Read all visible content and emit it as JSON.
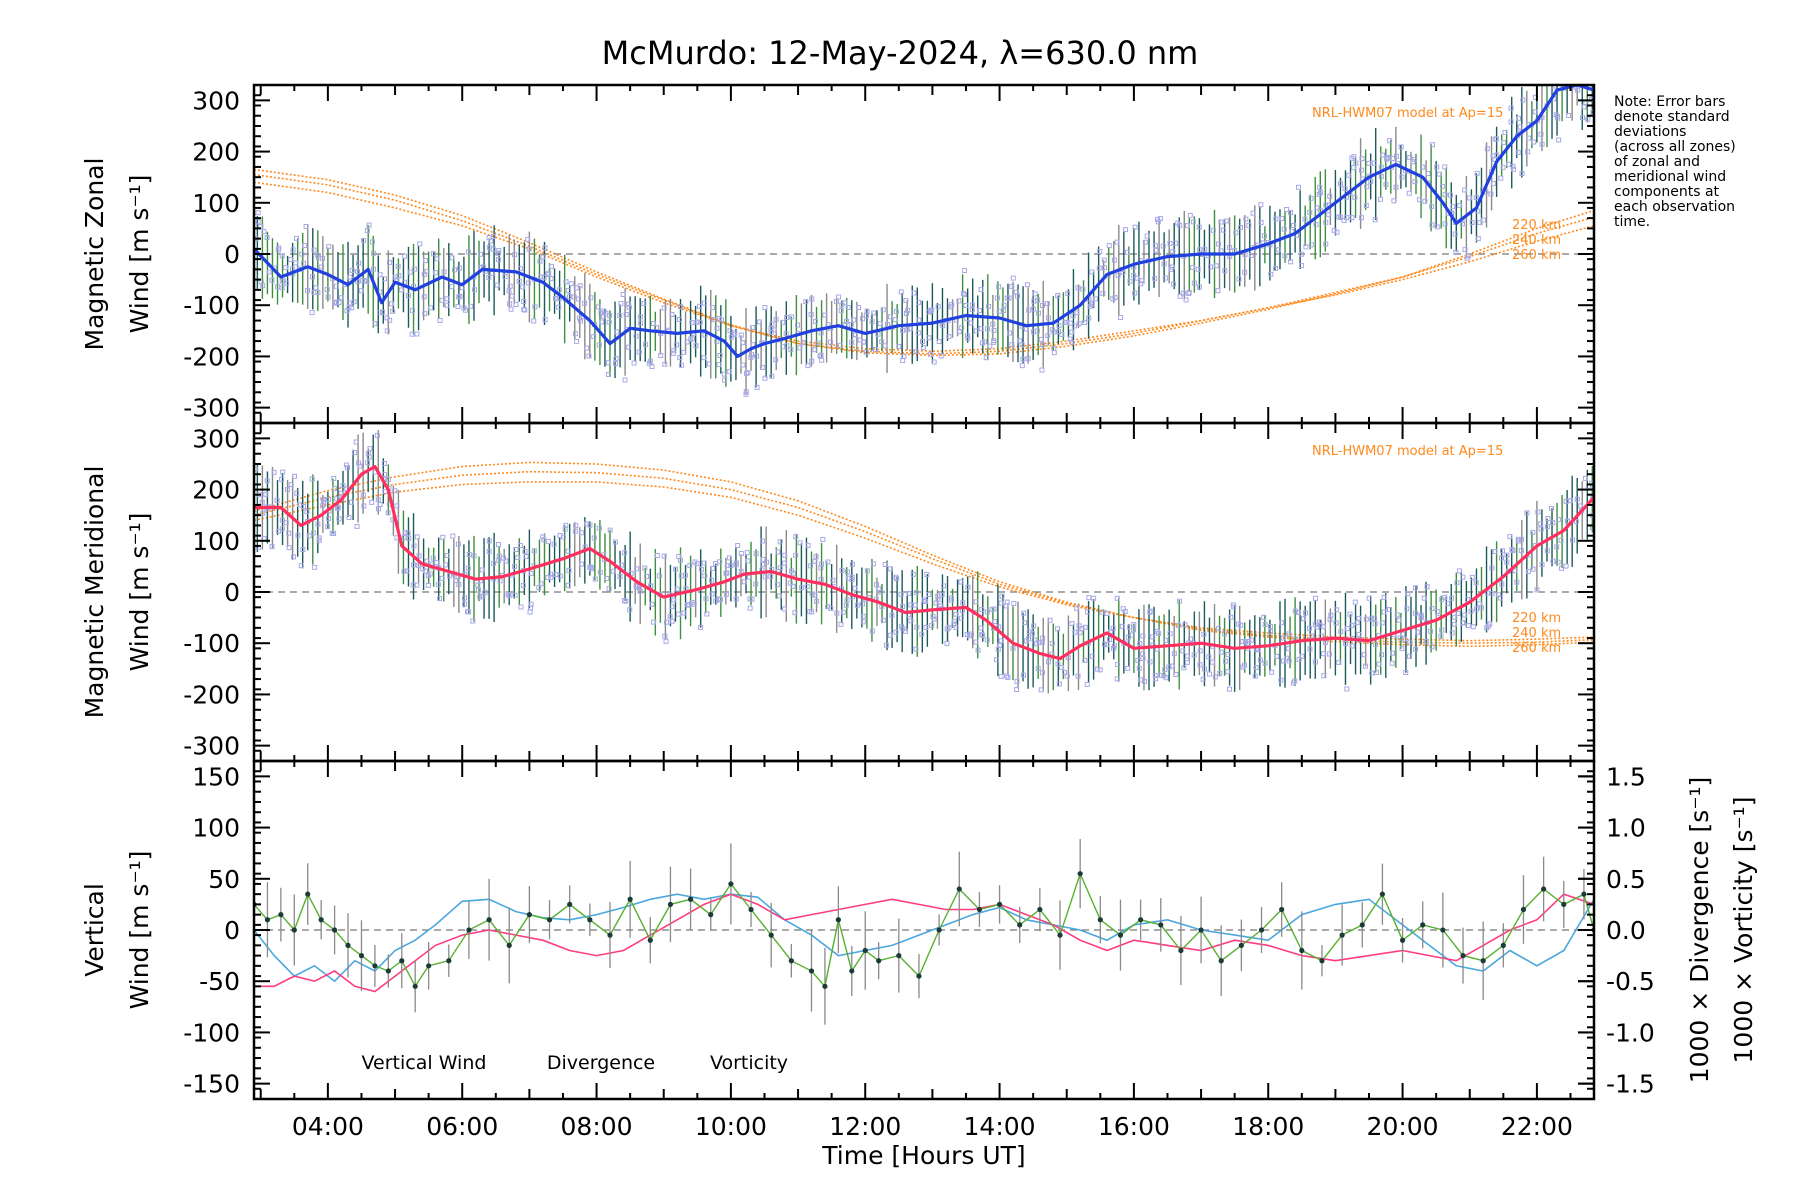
{
  "title": "McMurdo: 12-May-2024, λ=630.0 nm",
  "xlabel": "Time [Hours UT]",
  "x_ticks": [
    "04:00",
    "06:00",
    "08:00",
    "10:00",
    "12:00",
    "14:00",
    "16:00",
    "18:00",
    "20:00",
    "22:00"
  ],
  "note": [
    "Note: Error bars",
    "denote standard",
    "deviations",
    "(across all zones)",
    "of zonal and",
    "meridional wind",
    "components at",
    "each observation",
    "time."
  ],
  "colors": {
    "zonal": "#2040e0",
    "meridional": "#ff3060",
    "model": "#ff8a1e",
    "vertical": "#58b030",
    "divergence": "#4aa8de",
    "vorticity": "#ff3c82",
    "errorbar_dark": "#1c5a5a",
    "errorbar_green": "#3e8f3e",
    "errorbar_grey": "#8a8a8a",
    "zone_points": "#a8a8e8"
  },
  "chart_data": [
    {
      "type": "line",
      "title": "",
      "xlabel": "",
      "ylabel_lines": [
        "Magnetic Zonal",
        "Wind [m s⁻¹]"
      ],
      "xlim": [
        2.9,
        22.85
      ],
      "ylim": [
        -330,
        330
      ],
      "y_ticks": [
        -300,
        -200,
        -100,
        0,
        100,
        200,
        300
      ],
      "model_label": "NRL-HWM07 model at Ap=15",
      "model_alt_labels": [
        "220 km",
        "240 km",
        "260 km"
      ],
      "series": [
        {
          "name": "",
          "x": [
            2.9,
            3.3,
            3.7,
            4.0,
            4.3,
            4.6,
            4.8,
            5.0,
            5.3,
            5.7,
            6.0,
            6.3,
            6.8,
            7.2,
            7.5,
            7.9,
            8.2,
            8.5,
            8.8,
            9.2,
            9.6,
            9.9,
            10.1,
            10.3,
            10.5,
            10.8,
            11.2,
            11.6,
            12.0,
            12.5,
            13.0,
            13.5,
            14.0,
            14.4,
            14.8,
            15.2,
            15.6,
            16.0,
            16.5,
            17.0,
            17.5,
            18.0,
            18.4,
            18.8,
            19.2,
            19.5,
            19.9,
            20.3,
            20.6,
            20.8,
            21.1,
            21.4,
            21.7,
            22.0,
            22.3,
            22.6,
            22.85
          ],
          "y": [
            10,
            -45,
            -25,
            -40,
            -60,
            -30,
            -95,
            -55,
            -70,
            -45,
            -60,
            -30,
            -35,
            -55,
            -85,
            -130,
            -175,
            -145,
            -150,
            -155,
            -150,
            -170,
            -200,
            -185,
            -175,
            -165,
            -150,
            -140,
            -155,
            -140,
            -135,
            -120,
            -125,
            -140,
            -135,
            -100,
            -40,
            -20,
            -5,
            0,
            0,
            20,
            40,
            80,
            120,
            150,
            175,
            150,
            100,
            60,
            90,
            180,
            230,
            260,
            320,
            330,
            320
          ]
        }
      ],
      "model": [
        {
          "name": "220 km",
          "x": [
            2.9,
            4.0,
            5.0,
            6.0,
            7.0,
            8.0,
            9.0,
            10.0,
            11.0,
            12.0,
            13.0,
            14.0,
            15.0,
            16.0,
            17.0,
            18.0,
            19.0,
            20.0,
            21.0,
            22.0,
            22.85
          ],
          "y": [
            140,
            120,
            90,
            55,
            10,
            -45,
            -95,
            -140,
            -170,
            -185,
            -190,
            -185,
            -170,
            -150,
            -130,
            -105,
            -80,
            -50,
            -15,
            25,
            55
          ]
        },
        {
          "name": "240 km",
          "x": [
            2.9,
            4.0,
            5.0,
            6.0,
            7.0,
            8.0,
            9.0,
            10.0,
            11.0,
            12.0,
            13.0,
            14.0,
            15.0,
            16.0,
            17.0,
            18.0,
            19.0,
            20.0,
            21.0,
            22.0,
            22.85
          ],
          "y": [
            155,
            135,
            105,
            65,
            15,
            -40,
            -90,
            -140,
            -175,
            -190,
            -195,
            -190,
            -175,
            -155,
            -130,
            -105,
            -75,
            -45,
            -5,
            40,
            72
          ]
        },
        {
          "name": "260 km",
          "x": [
            2.9,
            4.0,
            5.0,
            6.0,
            7.0,
            8.0,
            9.0,
            10.0,
            11.0,
            12.0,
            13.0,
            14.0,
            15.0,
            16.0,
            17.0,
            18.0,
            19.0,
            20.0,
            21.0,
            22.0,
            22.85
          ],
          "y": [
            165,
            145,
            115,
            75,
            22,
            -35,
            -88,
            -138,
            -175,
            -193,
            -198,
            -195,
            -180,
            -160,
            -135,
            -108,
            -78,
            -45,
            0,
            50,
            85
          ]
        }
      ]
    },
    {
      "type": "line",
      "title": "",
      "xlabel": "",
      "ylabel_lines": [
        "Magnetic Meridional",
        "Wind [m s⁻¹]"
      ],
      "xlim": [
        2.9,
        22.85
      ],
      "ylim": [
        -330,
        330
      ],
      "y_ticks": [
        -300,
        -200,
        -100,
        0,
        100,
        200,
        300
      ],
      "model_label": "NRL-HWM07 model at Ap=15",
      "model_alt_labels": [
        "220 km",
        "240 km",
        "260 km"
      ],
      "series": [
        {
          "name": "",
          "x": [
            2.9,
            3.3,
            3.6,
            3.9,
            4.2,
            4.5,
            4.7,
            4.9,
            5.1,
            5.4,
            5.8,
            6.2,
            6.6,
            7.0,
            7.5,
            7.9,
            8.2,
            8.6,
            9.0,
            9.5,
            9.9,
            10.2,
            10.6,
            11.0,
            11.4,
            11.8,
            12.2,
            12.6,
            13.0,
            13.5,
            13.8,
            14.2,
            14.6,
            14.9,
            15.2,
            15.6,
            16.0,
            16.5,
            17.0,
            17.5,
            18.0,
            18.5,
            19.0,
            19.5,
            20.0,
            20.5,
            21.0,
            21.5,
            22.0,
            22.4,
            22.85
          ],
          "y": [
            165,
            165,
            130,
            150,
            180,
            230,
            245,
            200,
            90,
            55,
            40,
            25,
            30,
            45,
            65,
            85,
            60,
            20,
            -10,
            5,
            20,
            35,
            40,
            25,
            15,
            -5,
            -20,
            -40,
            -35,
            -30,
            -55,
            -100,
            -120,
            -130,
            -105,
            -80,
            -110,
            -105,
            -100,
            -110,
            -105,
            -95,
            -90,
            -95,
            -75,
            -55,
            -20,
            30,
            90,
            120,
            185
          ]
        }
      ],
      "model": [
        {
          "name": "220 km",
          "x": [
            2.9,
            4.0,
            5.0,
            6.0,
            7.0,
            8.0,
            9.0,
            10.0,
            11.0,
            12.0,
            13.0,
            14.0,
            15.0,
            16.0,
            17.0,
            18.0,
            19.0,
            20.0,
            21.0,
            22.0,
            22.85
          ],
          "y": [
            140,
            170,
            195,
            210,
            215,
            215,
            205,
            185,
            150,
            105,
            55,
            10,
            -25,
            -50,
            -70,
            -80,
            -88,
            -92,
            -95,
            -92,
            -88
          ]
        },
        {
          "name": "240 km",
          "x": [
            2.9,
            4.0,
            5.0,
            6.0,
            7.0,
            8.0,
            9.0,
            10.0,
            11.0,
            12.0,
            13.0,
            14.0,
            15.0,
            16.0,
            17.0,
            18.0,
            19.0,
            20.0,
            21.0,
            22.0,
            22.85
          ],
          "y": [
            150,
            185,
            210,
            228,
            235,
            233,
            222,
            200,
            165,
            118,
            65,
            15,
            -22,
            -50,
            -72,
            -85,
            -93,
            -98,
            -100,
            -98,
            -93
          ]
        },
        {
          "name": "260 km",
          "x": [
            2.9,
            4.0,
            5.0,
            6.0,
            7.0,
            8.0,
            9.0,
            10.0,
            11.0,
            12.0,
            13.0,
            14.0,
            15.0,
            16.0,
            17.0,
            18.0,
            19.0,
            20.0,
            21.0,
            22.0,
            22.85
          ],
          "y": [
            158,
            198,
            225,
            245,
            253,
            250,
            238,
            215,
            178,
            128,
            72,
            20,
            -20,
            -50,
            -75,
            -88,
            -97,
            -103,
            -106,
            -103,
            -98
          ]
        }
      ]
    },
    {
      "type": "line",
      "title": "",
      "xlabel": "Time [Hours UT]",
      "ylabel_lines": [
        "Vertical",
        "Wind [m s⁻¹]"
      ],
      "y2label_divergence": "1000 × Divergence [s⁻¹]",
      "y2label_vorticity": "1000 × Vorticity [s⁻¹]",
      "xlim": [
        2.9,
        22.85
      ],
      "ylim": [
        -165,
        165
      ],
      "y_ticks": [
        -150,
        -100,
        -50,
        0,
        50,
        100,
        150
      ],
      "y2lim": [
        -1.65,
        1.65
      ],
      "y2_ticks": [
        "1.5",
        "1.0",
        "0.5",
        "0.0",
        "-0.5",
        "-1.0",
        "-1.5"
      ],
      "legend": [
        "Vertical Wind",
        "Divergence",
        "Vorticity"
      ],
      "series": [
        {
          "name": "Vertical Wind",
          "x": [
            2.9,
            3.1,
            3.3,
            3.5,
            3.7,
            3.9,
            4.1,
            4.3,
            4.5,
            4.7,
            4.9,
            5.1,
            5.3,
            5.5,
            5.8,
            6.1,
            6.4,
            6.7,
            7.0,
            7.3,
            7.6,
            7.9,
            8.2,
            8.5,
            8.8,
            9.1,
            9.4,
            9.7,
            10.0,
            10.3,
            10.6,
            10.9,
            11.2,
            11.4,
            11.6,
            11.8,
            12.0,
            12.2,
            12.5,
            12.8,
            13.1,
            13.4,
            13.7,
            14.0,
            14.3,
            14.6,
            14.9,
            15.2,
            15.5,
            15.8,
            16.1,
            16.4,
            16.7,
            17.0,
            17.3,
            17.6,
            17.9,
            18.2,
            18.5,
            18.8,
            19.1,
            19.4,
            19.7,
            20.0,
            20.3,
            20.6,
            20.9,
            21.2,
            21.5,
            21.8,
            22.1,
            22.4,
            22.7,
            22.85
          ],
          "y": [
            25,
            10,
            15,
            0,
            35,
            10,
            0,
            -15,
            -25,
            -35,
            -40,
            -30,
            -55,
            -35,
            -30,
            0,
            10,
            -15,
            15,
            10,
            25,
            10,
            -5,
            30,
            -10,
            25,
            30,
            15,
            45,
            20,
            -5,
            -30,
            -40,
            -55,
            10,
            -40,
            -20,
            -30,
            -25,
            -45,
            0,
            40,
            20,
            25,
            5,
            20,
            -5,
            55,
            10,
            -5,
            10,
            5,
            -20,
            0,
            -30,
            -15,
            0,
            20,
            -20,
            -30,
            -5,
            5,
            35,
            -10,
            5,
            0,
            -25,
            -30,
            -15,
            20,
            40,
            25,
            35,
            0
          ]
        },
        {
          "name": "Divergence",
          "x": [
            2.9,
            3.2,
            3.5,
            3.8,
            4.1,
            4.4,
            4.7,
            5.0,
            5.3,
            5.6,
            6.0,
            6.4,
            6.8,
            7.2,
            7.6,
            8.0,
            8.4,
            8.8,
            9.2,
            9.6,
            10.0,
            10.4,
            10.8,
            11.2,
            11.6,
            12.0,
            12.4,
            12.8,
            13.2,
            13.6,
            14.0,
            14.4,
            14.8,
            15.2,
            15.6,
            16.0,
            16.5,
            17.0,
            17.5,
            18.0,
            18.5,
            19.0,
            19.5,
            20.0,
            20.4,
            20.8,
            21.2,
            21.6,
            22.0,
            22.4,
            22.85
          ],
          "y": [
            0.0,
            -0.25,
            -0.45,
            -0.35,
            -0.5,
            -0.3,
            -0.4,
            -0.2,
            -0.1,
            0.05,
            0.28,
            0.3,
            0.18,
            0.12,
            0.1,
            0.15,
            0.22,
            0.3,
            0.35,
            0.3,
            0.35,
            0.32,
            0.1,
            -0.05,
            -0.25,
            -0.2,
            -0.15,
            -0.05,
            0.05,
            0.15,
            0.22,
            0.1,
            0.05,
            0.0,
            -0.1,
            0.05,
            0.1,
            0.0,
            -0.05,
            -0.1,
            0.15,
            0.25,
            0.3,
            0.05,
            -0.15,
            -0.35,
            -0.4,
            -0.2,
            -0.35,
            -0.2,
            0.3
          ]
        },
        {
          "name": "Vorticity",
          "x": [
            2.9,
            3.2,
            3.5,
            3.8,
            4.1,
            4.4,
            4.7,
            5.0,
            5.3,
            5.6,
            6.0,
            6.4,
            6.8,
            7.2,
            7.6,
            8.0,
            8.4,
            8.8,
            9.2,
            9.6,
            10.0,
            10.4,
            10.8,
            11.2,
            11.6,
            12.0,
            12.4,
            12.8,
            13.2,
            13.6,
            14.0,
            14.4,
            14.8,
            15.2,
            15.6,
            16.0,
            16.5,
            17.0,
            17.5,
            18.0,
            18.5,
            19.0,
            19.5,
            20.0,
            20.4,
            20.8,
            21.2,
            21.6,
            22.0,
            22.4,
            22.85
          ],
          "y": [
            -0.55,
            -0.55,
            -0.45,
            -0.5,
            -0.4,
            -0.55,
            -0.6,
            -0.45,
            -0.3,
            -0.15,
            -0.05,
            0.0,
            -0.05,
            -0.1,
            -0.2,
            -0.25,
            -0.2,
            -0.05,
            0.1,
            0.25,
            0.35,
            0.25,
            0.1,
            0.15,
            0.2,
            0.25,
            0.3,
            0.25,
            0.2,
            0.2,
            0.25,
            0.15,
            0.05,
            -0.1,
            -0.2,
            -0.1,
            -0.15,
            -0.2,
            -0.1,
            -0.15,
            -0.25,
            -0.3,
            -0.25,
            -0.2,
            -0.25,
            -0.3,
            -0.15,
            0.0,
            0.1,
            0.35,
            0.25
          ]
        }
      ]
    }
  ]
}
